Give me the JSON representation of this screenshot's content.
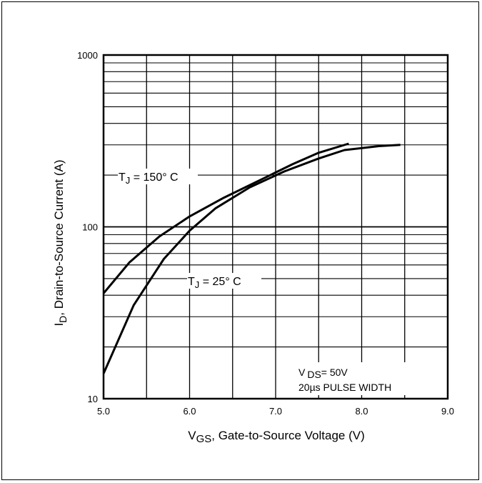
{
  "chart_data": {
    "type": "line",
    "title": "",
    "xlabel": "V_GS, Gate-to-Source Voltage (V)",
    "xlabel_main": "V",
    "xlabel_sub": "GS",
    "xlabel_rest": ", Gate-to-Source Voltage (V)",
    "ylabel": "I_D, Drain-to-Source Current (A)",
    "ylabel_main": "I",
    "ylabel_sub": "D",
    "ylabel_rest": ",  Drain-to-Source Current (A)",
    "x_scale": "linear",
    "y_scale": "log",
    "xlim": [
      5.0,
      9.0
    ],
    "ylim": [
      10,
      1000
    ],
    "x_ticks": [
      "5.0",
      "6.0",
      "7.0",
      "8.0",
      "9.0"
    ],
    "y_ticks": [
      "10",
      "100",
      "1000"
    ],
    "grid": true,
    "series": [
      {
        "name": "T_J = 150° C",
        "label_main": "T",
        "label_sub": "J",
        "label_rest": " = 150° C",
        "x": [
          5.0,
          5.3,
          5.65,
          6.0,
          6.4,
          6.8,
          7.2,
          7.5,
          7.85
        ],
        "y": [
          41,
          62,
          88,
          115,
          148,
          185,
          232,
          270,
          305
        ]
      },
      {
        "name": "T_J = 25° C",
        "label_main": "T",
        "label_sub": "J",
        "label_rest": " = 25° C",
        "x": [
          5.0,
          5.35,
          5.7,
          6.0,
          6.3,
          6.7,
          7.1,
          7.5,
          7.8,
          8.2,
          8.45
        ],
        "y": [
          14,
          35,
          65,
          95,
          128,
          170,
          210,
          250,
          280,
          295,
          300
        ]
      }
    ],
    "annotations": {
      "vds": "V DS= 50V",
      "vds_main": "V",
      "vds_sub": "DS",
      "vds_rest": "= 50V",
      "pulse": "20µs PULSE WIDTH"
    }
  }
}
